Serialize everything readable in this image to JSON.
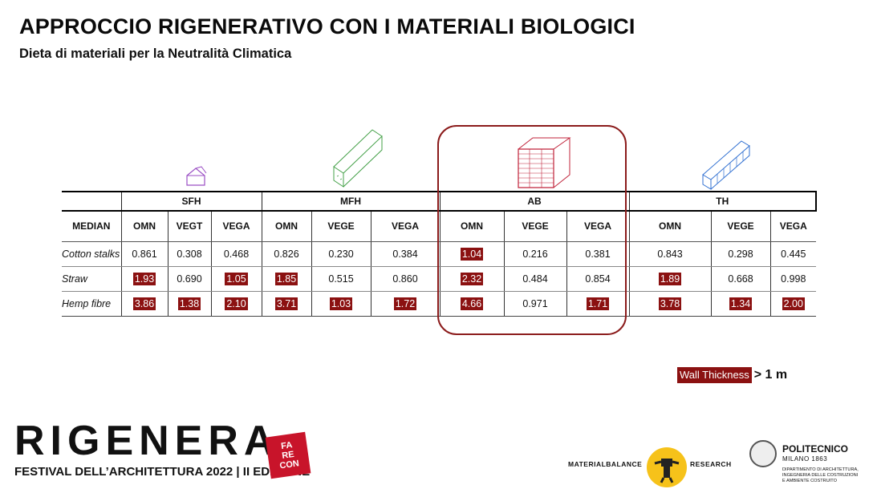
{
  "header": {
    "title": "APPROCCIO RIGENERATIVO CON I MATERIALI BIOLOGICI",
    "subtitle": "Dieta di materiali per la Neutralità Climatica"
  },
  "colors": {
    "highlight": "#8b1111",
    "sfh_icon": "#9b4fc4",
    "mfh_icon": "#43a047",
    "ab_icon": "#c0233a",
    "th_icon": "#2f6fd1"
  },
  "table": {
    "groups": [
      "SFH",
      "MFH",
      "AB",
      "TH"
    ],
    "median_label": "MEDIAN",
    "subheaders": [
      "OMN",
      "VEGT",
      "VEGA",
      "OMN",
      "VEGE",
      "VEGA",
      "OMN",
      "VEGE",
      "VEGA",
      "OMN",
      "VEGE",
      "VEGA"
    ],
    "rows": [
      {
        "material": "Cotton stalks",
        "cells": [
          {
            "v": "0.861",
            "h": false
          },
          {
            "v": "0.308",
            "h": false
          },
          {
            "v": "0.468",
            "h": false
          },
          {
            "v": "0.826",
            "h": false
          },
          {
            "v": "0.230",
            "h": false
          },
          {
            "v": "0.384",
            "h": false
          },
          {
            "v": "1.04",
            "h": true
          },
          {
            "v": "0.216",
            "h": false
          },
          {
            "v": "0.381",
            "h": false
          },
          {
            "v": "0.843",
            "h": false
          },
          {
            "v": "0.298",
            "h": false
          },
          {
            "v": "0.445",
            "h": false
          }
        ]
      },
      {
        "material": "Straw",
        "cells": [
          {
            "v": "1.93",
            "h": true
          },
          {
            "v": "0.690",
            "h": false
          },
          {
            "v": "1.05",
            "h": true
          },
          {
            "v": "1.85",
            "h": true
          },
          {
            "v": "0.515",
            "h": false
          },
          {
            "v": "0.860",
            "h": false
          },
          {
            "v": "2.32",
            "h": true
          },
          {
            "v": "0.484",
            "h": false
          },
          {
            "v": "0.854",
            "h": false
          },
          {
            "v": "1.89",
            "h": true
          },
          {
            "v": "0.668",
            "h": false
          },
          {
            "v": "0.998",
            "h": false
          }
        ]
      },
      {
        "material": "Hemp fibre",
        "cells": [
          {
            "v": "3.86",
            "h": true
          },
          {
            "v": "1.38",
            "h": true
          },
          {
            "v": "2.10",
            "h": true
          },
          {
            "v": "3.71",
            "h": true
          },
          {
            "v": "1.03",
            "h": true
          },
          {
            "v": "1.72",
            "h": true
          },
          {
            "v": "4.66",
            "h": true
          },
          {
            "v": "0.971",
            "h": false
          },
          {
            "v": "1.71",
            "h": true
          },
          {
            "v": "3.78",
            "h": true
          },
          {
            "v": "1.34",
            "h": true
          },
          {
            "v": "2.00",
            "h": true
          }
        ]
      }
    ]
  },
  "legend": {
    "box_label": "Wall Thickness",
    "suffix": "> 1 m"
  },
  "footer": {
    "rigenera": "RIGENERA",
    "festival": "FESTIVAL DELL’ARCHITETTURA 2022 | II EDIZIONE",
    "farecon": [
      "FA",
      "RE",
      "CON"
    ],
    "mb_left": "MATERIALBALANCE",
    "mb_right": "RESEARCH",
    "poli_name": "POLITECNICO",
    "poli_city": "MILANO 1863",
    "poli_dept": [
      "DIPARTIMENTO DI ARCHITETTURA,",
      "INGEGNERIA DELLE COSTRUZIONI",
      "E AMBIENTE COSTRUITO"
    ]
  },
  "icons": [
    "house-icon",
    "mfh-block-icon",
    "ab-block-icon",
    "th-row-icon"
  ]
}
